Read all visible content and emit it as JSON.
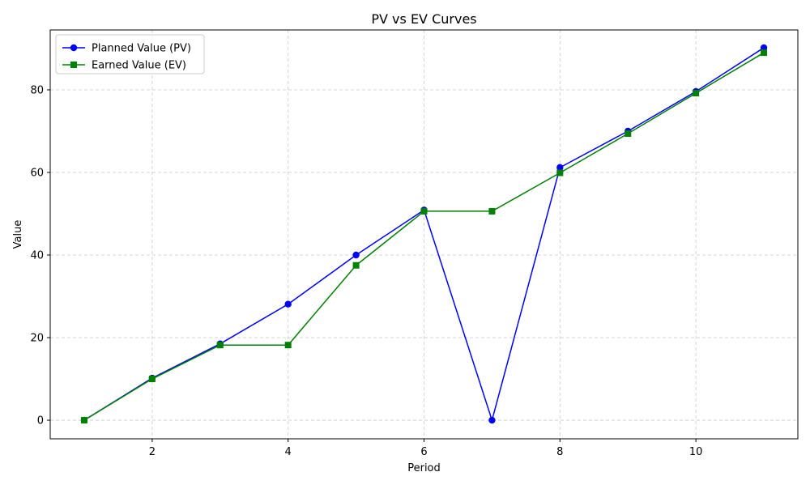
{
  "chart_data": {
    "type": "line",
    "title": "PV vs EV Curves",
    "xlabel": "Period",
    "ylabel": "Value",
    "x": [
      1,
      2,
      3,
      4,
      5,
      6,
      7,
      8,
      9,
      10,
      11
    ],
    "xlim": [
      0.5,
      11.5
    ],
    "ylim": [
      -4.5,
      94.5
    ],
    "xticks": [
      2,
      4,
      6,
      8,
      10
    ],
    "yticks": [
      0,
      20,
      40,
      60,
      80
    ],
    "grid": true,
    "legend_position": "top-left",
    "series": [
      {
        "name": "Planned Value (PV)",
        "color": "#0000ff",
        "marker": "circle",
        "values": [
          0,
          10.2,
          18.5,
          28.1,
          40.0,
          50.9,
          0,
          61.2,
          70.0,
          79.6,
          90.2
        ]
      },
      {
        "name": "Earned Value (EV)",
        "color": "#008000",
        "marker": "square",
        "values": [
          0,
          10.0,
          18.2,
          18.2,
          37.5,
          50.6,
          50.6,
          59.9,
          69.4,
          79.2,
          89.0
        ]
      }
    ]
  }
}
